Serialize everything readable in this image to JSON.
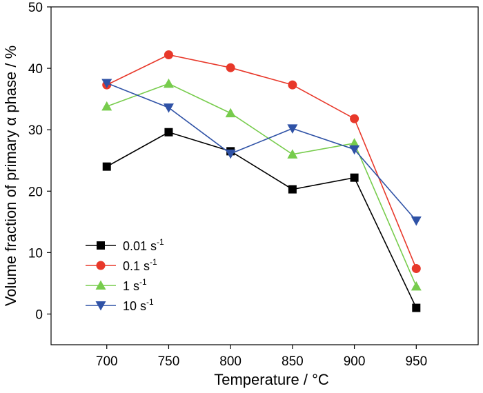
{
  "chart_data": {
    "type": "line",
    "xlabel": "Temperature / °C",
    "ylabel": "Volume fraction of primary α phase / %",
    "x": [
      700,
      750,
      800,
      850,
      900,
      950
    ],
    "xticks": [
      700,
      750,
      800,
      850,
      900,
      950
    ],
    "yticks": [
      0,
      10,
      20,
      30,
      40,
      50
    ],
    "xlim": [
      655,
      1000
    ],
    "ylim": [
      -5,
      50
    ],
    "grid": false,
    "legend_position": "bottom-left",
    "series": [
      {
        "name": "0.01 s-1",
        "label_base": "0.01 s",
        "label_exp": "-1",
        "marker": "square",
        "color": "#000000",
        "values": [
          24.0,
          29.6,
          26.5,
          20.3,
          22.2,
          1.0
        ]
      },
      {
        "name": "0.1 s-1",
        "label_base": "0.1 s",
        "label_exp": "-1",
        "marker": "circle",
        "color": "#e8382a",
        "values": [
          37.3,
          42.2,
          40.1,
          37.3,
          31.8,
          7.4
        ]
      },
      {
        "name": "1 s-1",
        "label_base": "1 s",
        "label_exp": "-1",
        "marker": "triangle-up",
        "color": "#77cc4c",
        "values": [
          33.8,
          37.5,
          32.7,
          26.0,
          27.8,
          4.5
        ]
      },
      {
        "name": "10 s-1",
        "label_base": "10 s",
        "label_exp": "-1",
        "marker": "triangle-down",
        "color": "#2f52a6",
        "values": [
          37.6,
          33.6,
          26.1,
          30.2,
          26.8,
          15.2
        ]
      }
    ]
  }
}
